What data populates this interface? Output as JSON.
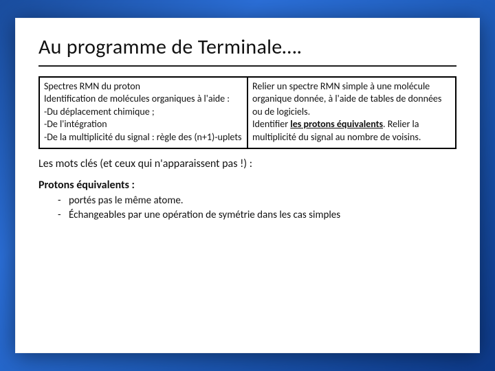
{
  "title": "Au programme de Terminale….",
  "table": {
    "left": {
      "l1": "Spectres RMN du proton",
      "l2": "Identification de molécules organiques à l'aide :",
      "l3": "-Du déplacement chimique ;",
      "l4": "-De l'intégration",
      "l5": "-De la multiplicité du signal : règle des (n+1)-uplets"
    },
    "right": {
      "r1a": "Relier un spectre RMN simple à une molécule organique donnée, à l'aide de tables de données ou de logiciels.",
      "r2_prefix": "Identifier ",
      "r2_bold": "les protons équivalents",
      "r2_suffix": ". Relier la multiplicité du signal au nombre de voisins."
    }
  },
  "keyline": "Les mots clés (et ceux qui n'apparaissent pas !)  :",
  "subhead": "Protons équivalents :",
  "bullets": {
    "b1": "portés pas le même atome.",
    "b2": "Échangeables par une opération de symétrie dans les cas simples"
  },
  "colors": {
    "text": "#111111",
    "border": "#000000",
    "background": "#ffffff",
    "frame_gradient_from": "#1a4d9e",
    "frame_gradient_to": "#0d3a8a"
  },
  "fontsizes": {
    "title": 30,
    "table": 14,
    "keyline": 16,
    "subhead": 16,
    "bullet": 15
  }
}
